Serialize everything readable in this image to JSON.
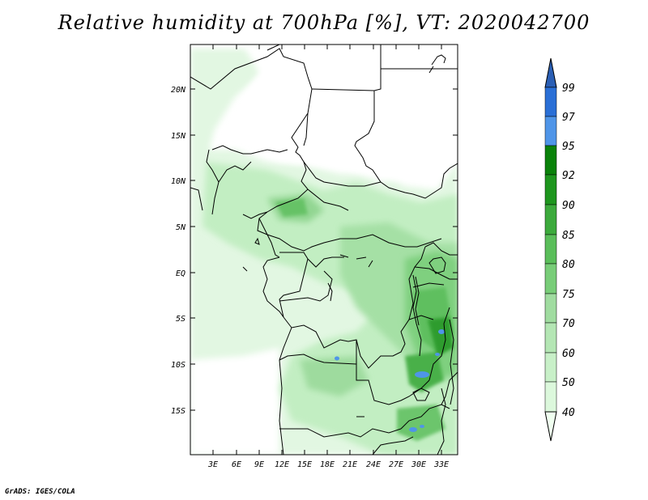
{
  "title": "Relative humidity at 700hPa [%], VT: 2020042700",
  "footer": "GrADS: IGES/COLA",
  "map": {
    "lat_labels": [
      "20N",
      "15N",
      "10N",
      "5N",
      "EQ",
      "5S",
      "10S",
      "15S"
    ],
    "lon_labels": [
      "3E",
      "6E",
      "9E",
      "12E",
      "15E",
      "18E",
      "21E",
      "24E",
      "27E",
      "30E",
      "33E"
    ]
  },
  "colorbar": {
    "labels": [
      "99",
      "97",
      "95",
      "92",
      "90",
      "85",
      "80",
      "75",
      "70",
      "60",
      "50",
      "40"
    ],
    "colors": {
      "40": "#f0fff0",
      "50": "#dcf8dc",
      "60": "#c8f0c8",
      "70": "#b4e6b4",
      "75": "#a0dca0",
      "80": "#78cd78",
      "85": "#5abe5a",
      "90": "#3caa3c",
      "92": "#1e961e",
      "95": "#0a820a",
      "97": "#4f95e8",
      "99": "#2a6fd6",
      "top": "#2b5fb5"
    }
  }
}
